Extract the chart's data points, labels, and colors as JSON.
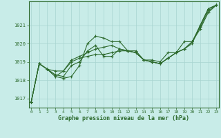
{
  "title": "Graphe pression niveau de la mer (hPa)",
  "bg_color": "#c8ece8",
  "line_color": "#2d6a2d",
  "grid_color": "#a8d4d0",
  "xlim": [
    -0.3,
    23.3
  ],
  "ylim": [
    1016.5,
    1022.3
  ],
  "yticks": [
    1017,
    1018,
    1019,
    1020,
    1021
  ],
  "xticks": [
    0,
    1,
    2,
    3,
    4,
    5,
    6,
    7,
    8,
    9,
    10,
    11,
    12,
    13,
    14,
    15,
    16,
    17,
    18,
    19,
    20,
    21,
    22,
    23
  ],
  "series": [
    [
      1016.8,
      1018.9,
      1018.6,
      1018.2,
      1018.1,
      1018.2,
      1018.8,
      1020.0,
      1020.4,
      1020.3,
      1020.1,
      1020.1,
      1019.6,
      1019.6,
      1019.1,
      1019.1,
      1019.0,
      1019.5,
      1019.5,
      1020.1,
      1020.1,
      1021.0,
      1021.9,
      1022.1
    ],
    [
      1016.8,
      1018.9,
      1018.6,
      1018.2,
      1018.5,
      1019.0,
      1019.2,
      1019.3,
      1019.4,
      1019.4,
      1019.5,
      1019.6,
      1019.6,
      1019.5,
      1019.1,
      1019.0,
      1018.9,
      1019.2,
      1019.5,
      1019.7,
      1020.0,
      1021.0,
      1021.9,
      1022.1
    ],
    [
      1016.8,
      1018.9,
      1018.6,
      1018.5,
      1018.5,
      1019.1,
      1019.3,
      1019.5,
      1019.7,
      1019.8,
      1019.9,
      1019.7,
      1019.6,
      1019.5,
      1019.1,
      1019.0,
      1018.9,
      1019.2,
      1019.5,
      1019.7,
      1020.1,
      1020.9,
      1021.8,
      1022.1
    ],
    [
      1016.8,
      1018.9,
      1018.6,
      1018.3,
      1018.2,
      1018.8,
      1019.0,
      1019.6,
      1019.9,
      1019.3,
      1019.3,
      1019.7,
      1019.6,
      1019.5,
      1019.1,
      1019.0,
      1018.9,
      1019.2,
      1019.5,
      1019.7,
      1020.1,
      1020.8,
      1021.7,
      1022.1
    ]
  ]
}
